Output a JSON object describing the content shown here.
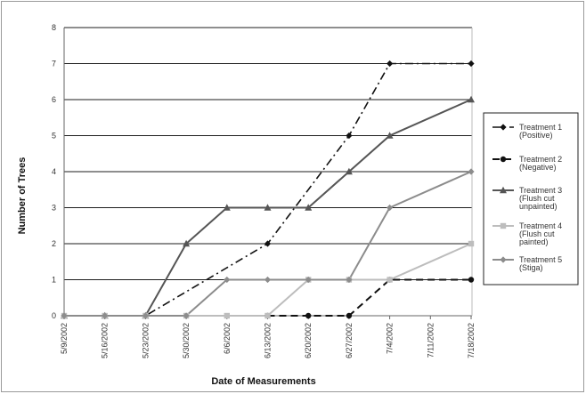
{
  "chart_data": {
    "type": "line",
    "xlabel": "Date of Measurements",
    "ylabel": "Number of Trees",
    "ylim": [
      0,
      8
    ],
    "yticks": [
      "0",
      "1",
      "2",
      "3",
      "4",
      "5",
      "6",
      "7",
      "8"
    ],
    "categories": [
      "5/9/2002",
      "5/16/2002",
      "5/23/2002",
      "5/30/2002",
      "6/6/2002",
      "6/13/2002",
      "6/20/2002",
      "6/27/2002",
      "7/4/2002",
      "7/11/2002",
      "7/18/2002"
    ],
    "grid": true,
    "legend_position": "right",
    "series": [
      {
        "name": "Treatment 1 (Positive)",
        "legend_lines": [
          "Treatment 1",
          "(Positive)"
        ],
        "color": "#111111",
        "dash": "dashdot",
        "marker": "diamond",
        "values": [
          0,
          0,
          0,
          null,
          null,
          2,
          null,
          5,
          7,
          null,
          7
        ]
      },
      {
        "name": "Treatment 2 (Negative)",
        "legend_lines": [
          "Treatment 2",
          "(Negative)"
        ],
        "color": "#111111",
        "dash": "dash",
        "marker": "circle",
        "values": [
          null,
          null,
          null,
          null,
          null,
          0,
          0,
          0,
          1,
          null,
          1
        ]
      },
      {
        "name": "Treatment 3 (Flush cut unpainted)",
        "legend_lines": [
          "Treatment 3",
          "(Flush cut",
          "unpainted)"
        ],
        "color": "#555555",
        "dash": "solid",
        "marker": "triangle",
        "values": [
          0,
          0,
          0,
          2,
          3,
          3,
          3,
          4,
          5,
          null,
          6
        ]
      },
      {
        "name": "Treatment 4 (Flush cut painted)",
        "legend_lines": [
          "Treatment 4",
          "(Flush cut",
          "painted)"
        ],
        "color": "#bdbdbd",
        "dash": "solid",
        "marker": "square",
        "values": [
          0,
          0,
          0,
          0,
          0,
          0,
          1,
          1,
          1,
          null,
          2
        ]
      },
      {
        "name": "Treatment 5 (Stiga)",
        "legend_lines": [
          "Treatment 5",
          "(Stiga)"
        ],
        "color": "#8c8c8c",
        "dash": "solid",
        "marker": "diamond",
        "values": [
          0,
          0,
          0,
          0,
          1,
          1,
          1,
          1,
          3,
          null,
          4
        ]
      }
    ]
  }
}
